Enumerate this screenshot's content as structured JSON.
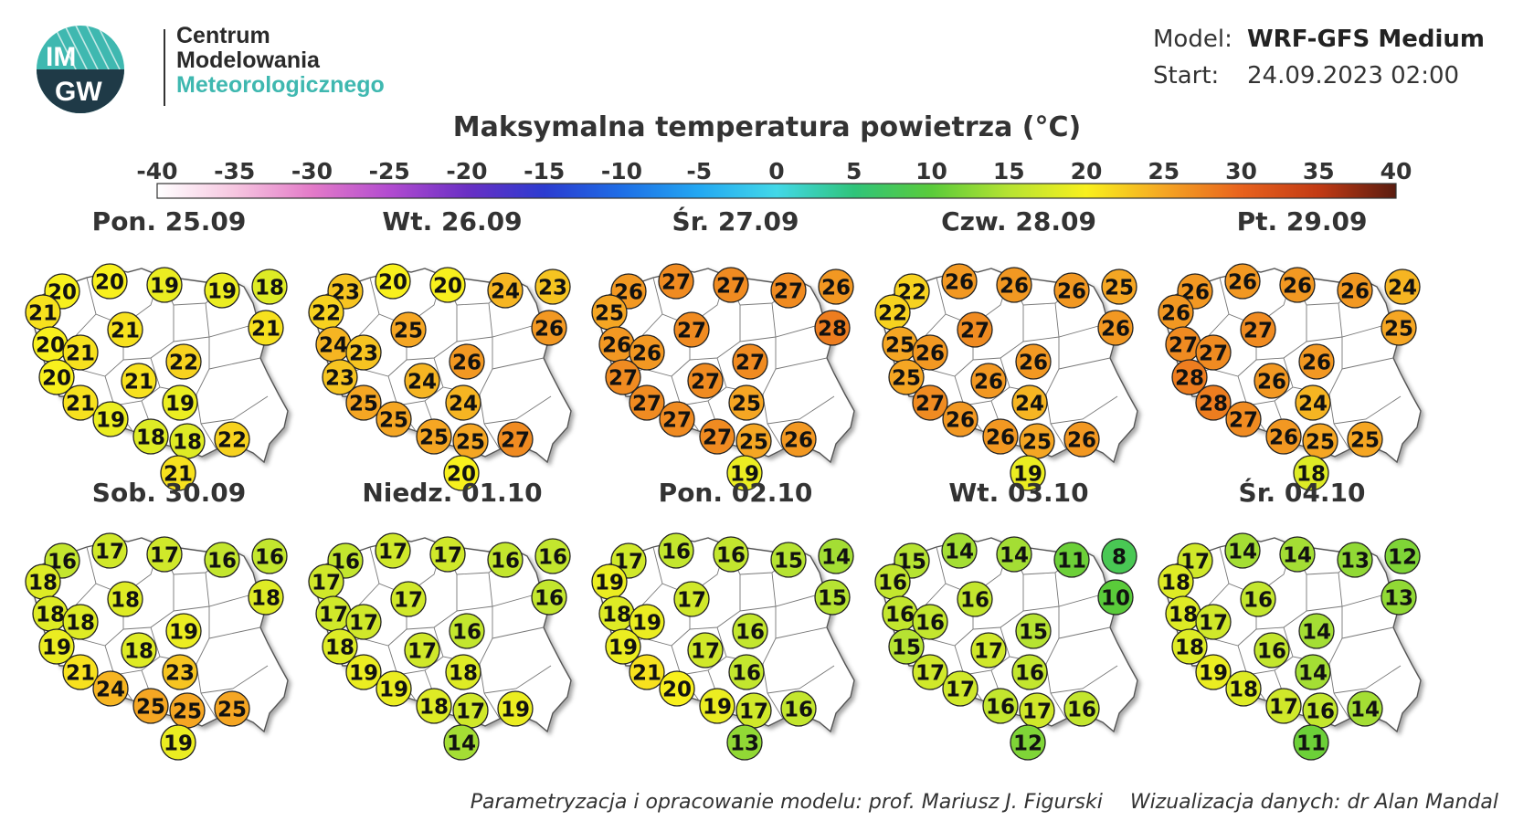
{
  "header": {
    "logo": {
      "mark_text": "IMGW",
      "name_line1": "Centrum",
      "name_line2": "Modelowania",
      "name_line3": "Meteorologicznego"
    },
    "model_label": "Model:",
    "model_value": "WRF-GFS Medium",
    "start_label": "Start:",
    "start_value": "24.09.2023 02:00"
  },
  "title": "Maksymalna temperatura powietrza (°C)",
  "scale": {
    "ticks": [
      "-40",
      "-35",
      "-30",
      "-25",
      "-20",
      "-15",
      "-10",
      "-5",
      "0",
      "5",
      "10",
      "15",
      "20",
      "25",
      "30",
      "35",
      "40"
    ],
    "min": -40,
    "max": 40
  },
  "stations": [
    "NW",
    "NWC",
    "N",
    "NE",
    "E",
    "W",
    "C1",
    "C2",
    "C3",
    "CE",
    "WL1",
    "WL2",
    "CL",
    "EL",
    "SW1",
    "SW2",
    "S1",
    "S2",
    "SE",
    "SS"
  ],
  "days": [
    {
      "label": "Pon. 25.09",
      "temps": [
        20,
        20,
        19,
        19,
        18,
        21,
        20,
        21,
        21,
        21,
        20,
        22,
        21,
        19,
        21,
        19,
        18,
        18,
        22,
        21
      ]
    },
    {
      "label": "Wt. 26.09",
      "temps": [
        23,
        20,
        20,
        24,
        23,
        22,
        24,
        23,
        25,
        26,
        23,
        26,
        24,
        24,
        25,
        25,
        25,
        25,
        27,
        20
      ]
    },
    {
      "label": "Śr. 27.09",
      "temps": [
        26,
        27,
        27,
        27,
        26,
        25,
        26,
        26,
        27,
        28,
        27,
        27,
        27,
        25,
        27,
        27,
        27,
        25,
        26,
        19
      ]
    },
    {
      "label": "Czw. 28.09",
      "temps": [
        22,
        26,
        26,
        26,
        25,
        22,
        25,
        26,
        27,
        26,
        25,
        26,
        26,
        24,
        27,
        26,
        26,
        25,
        26,
        19
      ]
    },
    {
      "label": "Pt. 29.09",
      "temps": [
        26,
        26,
        26,
        26,
        24,
        26,
        27,
        27,
        27,
        25,
        28,
        26,
        26,
        24,
        28,
        27,
        26,
        25,
        25,
        18
      ]
    },
    {
      "label": "Sob. 30.09",
      "temps": [
        16,
        17,
        17,
        16,
        16,
        18,
        18,
        18,
        18,
        18,
        19,
        19,
        18,
        23,
        21,
        24,
        25,
        25,
        25,
        19
      ]
    },
    {
      "label": "Niedz. 01.10",
      "temps": [
        16,
        17,
        17,
        16,
        16,
        17,
        17,
        17,
        17,
        16,
        18,
        16,
        17,
        18,
        19,
        19,
        18,
        17,
        19,
        14
      ]
    },
    {
      "label": "Pon. 02.10",
      "temps": [
        17,
        16,
        16,
        15,
        14,
        19,
        18,
        19,
        17,
        15,
        19,
        16,
        17,
        16,
        21,
        20,
        19,
        17,
        16,
        13
      ]
    },
    {
      "label": "Wt. 03.10",
      "temps": [
        15,
        14,
        14,
        11,
        8,
        16,
        16,
        16,
        16,
        10,
        15,
        15,
        17,
        16,
        17,
        17,
        16,
        17,
        16,
        12
      ]
    },
    {
      "label": "Śr. 04.10",
      "temps": [
        17,
        14,
        14,
        13,
        12,
        18,
        18,
        17,
        16,
        13,
        18,
        14,
        16,
        14,
        19,
        18,
        17,
        16,
        14,
        11
      ]
    }
  ],
  "footer": {
    "left": "Parametryzacja i opracowanie modelu: prof. Mariusz J. Figurski",
    "right": "Wizualizacja danych: dr Alan Mandal"
  }
}
